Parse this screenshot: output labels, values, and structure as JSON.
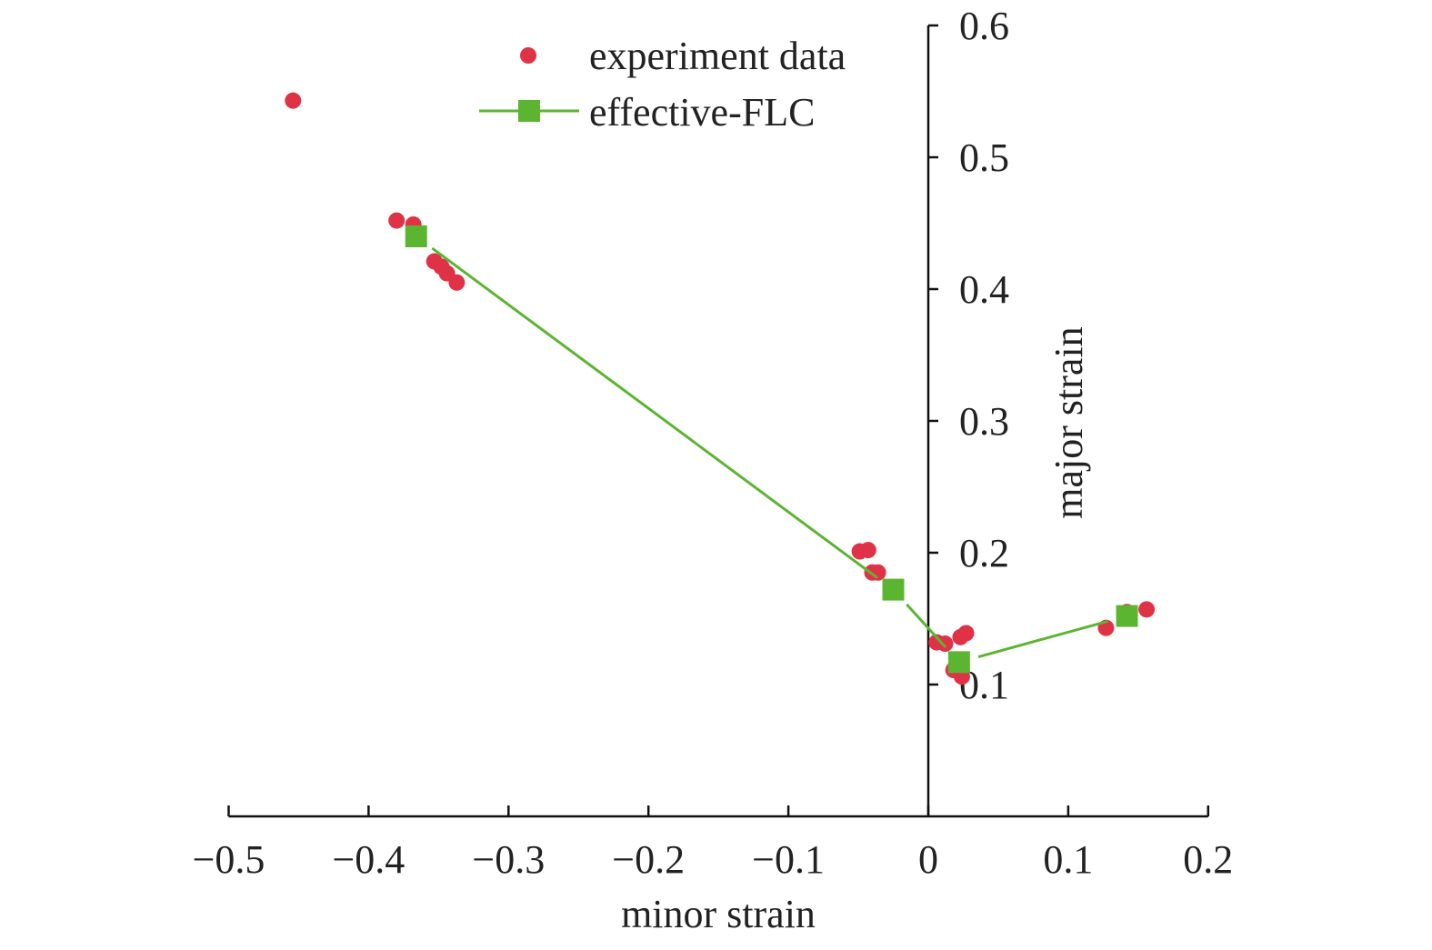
{
  "chart_data": {
    "type": "scatter",
    "title": "",
    "xlabel": "minor strain",
    "ylabel": "major strain",
    "xlim": [
      -0.5,
      0.2
    ],
    "ylim": [
      0,
      0.6
    ],
    "xticks": [
      -0.5,
      -0.4,
      -0.3,
      -0.2,
      -0.1,
      0,
      0.1,
      0.2
    ],
    "xtick_labels": [
      "−0.5",
      "−0.4",
      "−0.3",
      "−0.2",
      "−0.1",
      "0",
      "0.1",
      "0.2"
    ],
    "yticks": [
      0.1,
      0.2,
      0.3,
      0.4,
      0.5,
      0.6
    ],
    "ytick_labels": [
      "0.1",
      "0.2",
      "0.3",
      "0.4",
      "0.5",
      "0.6"
    ],
    "grid": false,
    "legend_placement": "top",
    "series": [
      {
        "name": "experiment data",
        "kind": "scatter",
        "color": "#e03246",
        "marker": "circle",
        "points": [
          [
            -0.454,
            0.543
          ],
          [
            -0.38,
            0.452
          ],
          [
            -0.368,
            0.449
          ],
          [
            -0.353,
            0.421
          ],
          [
            -0.348,
            0.417
          ],
          [
            -0.344,
            0.412
          ],
          [
            -0.337,
            0.405
          ],
          [
            -0.049,
            0.201
          ],
          [
            -0.043,
            0.202
          ],
          [
            -0.04,
            0.185
          ],
          [
            -0.036,
            0.185
          ],
          [
            0.006,
            0.132
          ],
          [
            0.012,
            0.131
          ],
          [
            0.023,
            0.136
          ],
          [
            0.027,
            0.139
          ],
          [
            0.018,
            0.111
          ],
          [
            0.024,
            0.106
          ],
          [
            0.127,
            0.143
          ],
          [
            0.142,
            0.155
          ],
          [
            0.156,
            0.157
          ]
        ]
      },
      {
        "name": "effective-FLC",
        "kind": "line",
        "color": "#5cb531",
        "marker": "square",
        "points": [
          [
            -0.366,
            0.44
          ],
          [
            -0.025,
            0.172
          ],
          [
            0.022,
            0.117
          ],
          [
            0.142,
            0.152
          ]
        ]
      }
    ]
  }
}
